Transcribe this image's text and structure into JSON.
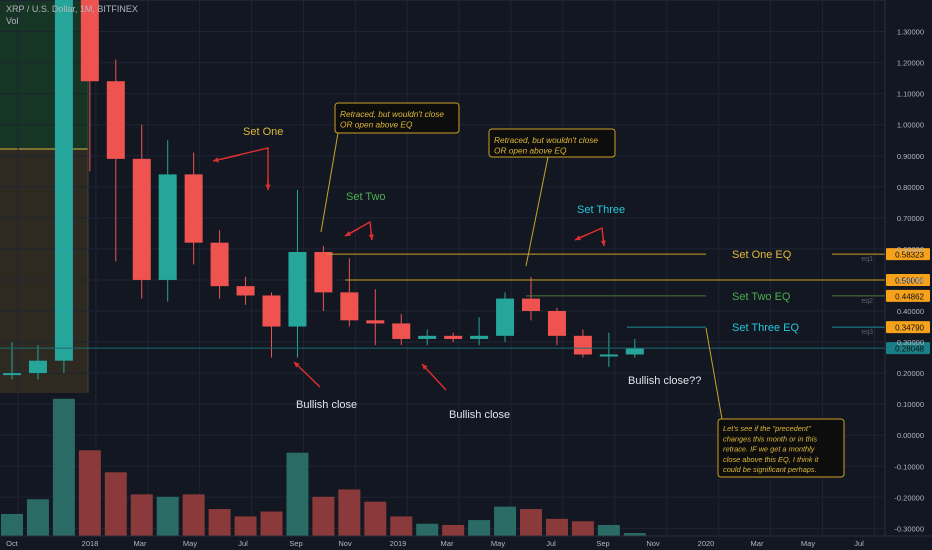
{
  "header": {
    "symbol": "XRP / U.S. Dollar, 1M, BITFINEX",
    "volume_label": "Vol"
  },
  "colors": {
    "up": "#26a69a",
    "down": "#ef5350",
    "bg": "#131722",
    "grid": "#1f2433",
    "text": "#b2b5be",
    "annotation": "#e0b93a",
    "arrow": "#e02f2f",
    "set_three": "#26c6da",
    "set_two": "#4caf50"
  },
  "chart_data": {
    "type": "candlestick",
    "title": "XRP / U.S. Dollar, 1M, BITFINEX",
    "x_tick_labels": [
      "Oct",
      "2018",
      "Mar",
      "May",
      "Jul",
      "Sep",
      "Nov",
      "2019",
      "Mar",
      "May",
      "Jul",
      "Sep",
      "Nov",
      "2020",
      "Mar",
      "May",
      "Jul"
    ],
    "y_tick_labels": [
      "1.40000",
      "1.30000",
      "1.20000",
      "1.10000",
      "1.00000",
      "0.90000",
      "0.80000",
      "0.70000",
      "0.60000",
      "0.50000",
      "0.40000",
      "0.30000",
      "0.20000",
      "0.10000",
      "0.00000",
      "-0.10000",
      "-0.20000",
      "-0.30000"
    ],
    "ylim": [
      -0.3,
      1.4
    ],
    "candles": [
      {
        "date": "2017-10",
        "open": 0.2,
        "high": 0.3,
        "low": 0.18,
        "close": 0.2
      },
      {
        "date": "2017-11",
        "open": 0.2,
        "high": 0.29,
        "low": 0.18,
        "close": 0.24
      },
      {
        "date": "2017-12",
        "open": 0.24,
        "high": 2.4,
        "low": 0.2,
        "close": 2.2
      },
      {
        "date": "2018-01",
        "open": 2.2,
        "high": 3.3,
        "low": 0.85,
        "close": 1.14
      },
      {
        "date": "2018-02",
        "open": 1.14,
        "high": 1.21,
        "low": 0.56,
        "close": 0.89
      },
      {
        "date": "2018-03",
        "open": 0.89,
        "high": 1.0,
        "low": 0.44,
        "close": 0.5
      },
      {
        "date": "2018-04",
        "open": 0.5,
        "high": 0.95,
        "low": 0.43,
        "close": 0.84
      },
      {
        "date": "2018-05",
        "open": 0.84,
        "high": 0.91,
        "low": 0.55,
        "close": 0.62
      },
      {
        "date": "2018-06",
        "open": 0.62,
        "high": 0.66,
        "low": 0.44,
        "close": 0.48
      },
      {
        "date": "2018-07",
        "open": 0.48,
        "high": 0.51,
        "low": 0.42,
        "close": 0.45
      },
      {
        "date": "2018-08",
        "open": 0.45,
        "high": 0.46,
        "low": 0.25,
        "close": 0.35
      },
      {
        "date": "2018-09",
        "open": 0.35,
        "high": 0.79,
        "low": 0.25,
        "close": 0.59
      },
      {
        "date": "2018-10",
        "open": 0.59,
        "high": 0.61,
        "low": 0.4,
        "close": 0.46
      },
      {
        "date": "2018-11",
        "open": 0.46,
        "high": 0.57,
        "low": 0.35,
        "close": 0.37
      },
      {
        "date": "2018-12",
        "open": 0.37,
        "high": 0.47,
        "low": 0.29,
        "close": 0.36
      },
      {
        "date": "2019-01",
        "open": 0.36,
        "high": 0.39,
        "low": 0.29,
        "close": 0.31
      },
      {
        "date": "2019-02",
        "open": 0.31,
        "high": 0.34,
        "low": 0.29,
        "close": 0.32
      },
      {
        "date": "2019-03",
        "open": 0.32,
        "high": 0.33,
        "low": 0.3,
        "close": 0.31
      },
      {
        "date": "2019-04",
        "open": 0.31,
        "high": 0.38,
        "low": 0.29,
        "close": 0.32
      },
      {
        "date": "2019-05",
        "open": 0.32,
        "high": 0.46,
        "low": 0.3,
        "close": 0.44
      },
      {
        "date": "2019-06",
        "open": 0.44,
        "high": 0.51,
        "low": 0.37,
        "close": 0.4
      },
      {
        "date": "2019-07",
        "open": 0.4,
        "high": 0.41,
        "low": 0.29,
        "close": 0.32
      },
      {
        "date": "2019-08",
        "open": 0.32,
        "high": 0.34,
        "low": 0.25,
        "close": 0.26
      },
      {
        "date": "2019-09",
        "open": 0.26,
        "high": 0.33,
        "low": 0.22,
        "close": 0.26
      },
      {
        "date": "2019-10",
        "open": 0.26,
        "high": 0.31,
        "low": 0.25,
        "close": 0.28
      }
    ],
    "volume_bars": [
      0.9,
      1.5,
      5.6,
      3.5,
      2.6,
      1.7,
      1.6,
      1.7,
      1.1,
      0.8,
      1.0,
      3.4,
      1.6,
      1.9,
      1.4,
      0.8,
      0.5,
      0.45,
      0.65,
      1.2,
      1.1,
      0.7,
      0.6,
      0.45,
      0.12
    ],
    "levels": [
      {
        "name": "Set One EQ",
        "value": 0.58323,
        "axis_label": "0.58323",
        "tag": "eq1"
      },
      {
        "name": "Set Two EQ",
        "value": 0.44862,
        "axis_label": "0.44862",
        "tag": "eq2"
      },
      {
        "name": "Set Three EQ",
        "value": 0.3479,
        "axis_label": "0.34790",
        "tag": "eq3"
      },
      {
        "name": "",
        "value": 0.5,
        "axis_label": "0.50000",
        "tag": ""
      },
      {
        "name": "",
        "value": 0.28048,
        "axis_label": "0.28048",
        "tag": ""
      }
    ],
    "annotations": {
      "set_one": "Set One",
      "set_two": "Set Two",
      "set_three": "Set Three",
      "callout_1": [
        "Retraced, but wouldn't close",
        "OR open above EQ"
      ],
      "callout_2": [
        "Retraced, but wouldn't close",
        "OR open above EQ"
      ],
      "callout_3": [
        "Let's see if the \"precedent\"",
        "changes this month or in this",
        "retrace. IF we get a monthly",
        "close above this EQ, I think it",
        "could be significant perhaps."
      ],
      "bullish_1": "Bullish close",
      "bullish_2": "Bullish close",
      "bullish_3": "Bullish close??"
    }
  }
}
